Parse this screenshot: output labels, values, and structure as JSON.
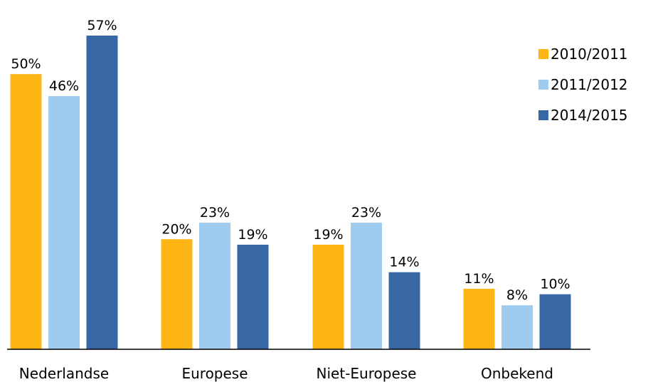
{
  "chart_data": {
    "type": "bar",
    "categories": [
      "Nederlandse",
      "Europese",
      "Niet-Europese",
      "Onbekend"
    ],
    "series": [
      {
        "name": "2010/2011",
        "color": "#fdb515",
        "values": [
          50,
          20,
          19,
          11
        ],
        "value_labels": [
          "50%",
          "20%",
          "19%",
          "11%"
        ]
      },
      {
        "name": "2011/2012",
        "color": "#9fcbef",
        "values": [
          46,
          23,
          23,
          8
        ],
        "value_labels": [
          "46%",
          "23%",
          "23%",
          "8%"
        ]
      },
      {
        "name": "2014/2015",
        "color": "#3867a6",
        "values": [
          57,
          19,
          14,
          10
        ],
        "value_labels": [
          "57%",
          "19%",
          "14%",
          "10%"
        ]
      }
    ],
    "legend": "right"
  }
}
